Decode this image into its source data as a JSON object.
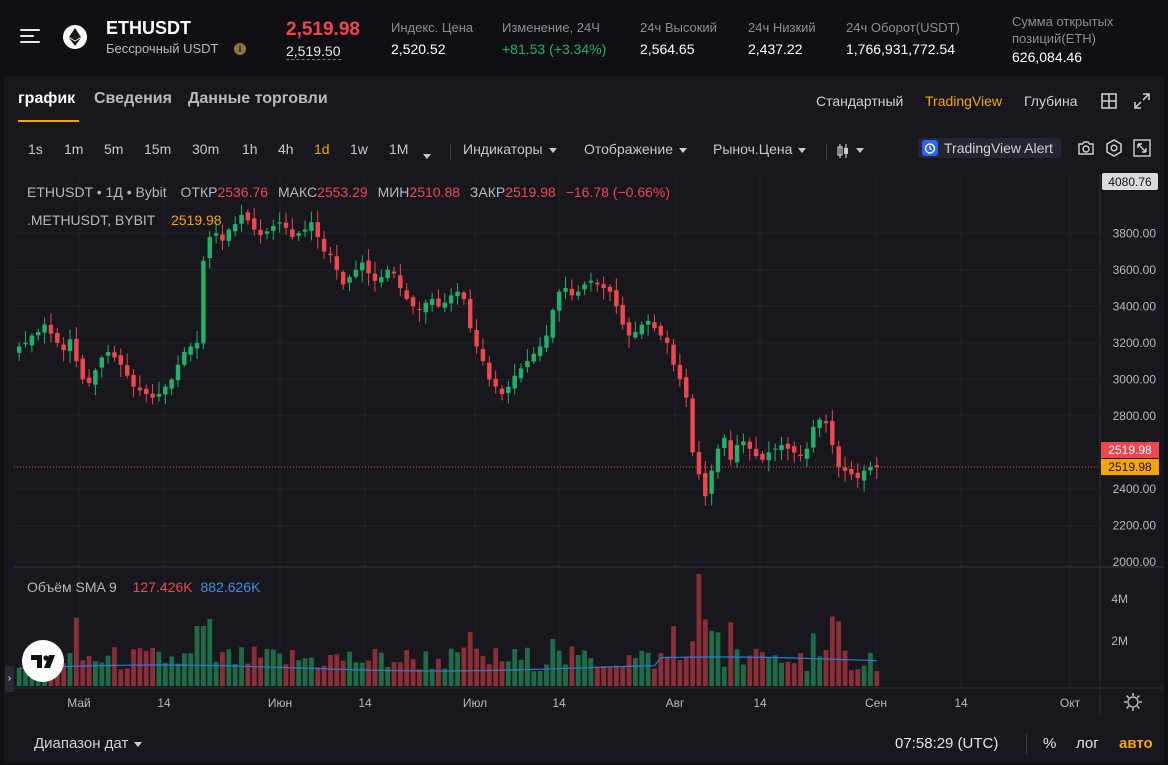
{
  "header": {
    "symbol": "ETHUSDT",
    "contract": "Бессрочный USDT",
    "last_price": "2,519.98",
    "mark_price": "2,519.50",
    "stats": [
      {
        "label": "Индекс. Цена",
        "value": "2,520.52",
        "color": "#ffffff"
      },
      {
        "label": "Изменение, 24Ч",
        "value": "+81.53 (+3.34%)",
        "color": "#20b26c"
      },
      {
        "label": "24ч Высокий",
        "value": "2,564.65",
        "color": "#ffffff"
      },
      {
        "label": "24ч Низкий",
        "value": "2,437.22",
        "color": "#ffffff"
      },
      {
        "label": "24ч Оборот(USDT)",
        "value": "1,766,931,772.54",
        "color": "#ffffff"
      }
    ],
    "open_interest": {
      "label_line1": "Сумма открытых",
      "label_line2": "позиций(ETH)",
      "value": "626,084.46"
    }
  },
  "tabs": [
    "график",
    "Сведения",
    "Данные торговли"
  ],
  "active_tab": "график",
  "view_modes": [
    "Стандартный",
    "TradingView",
    "Глубина"
  ],
  "active_view": "TradingView",
  "timeframes": [
    "1s",
    "1m",
    "5m",
    "15m",
    "30m",
    "1h",
    "4h",
    "1d",
    "1w",
    "1M"
  ],
  "active_timeframe": "1d",
  "toolbar": {
    "indicators": "Индикаторы",
    "display": "Отображение",
    "price_type": "Рыноч.Цена",
    "alert": "TradingView Alert"
  },
  "legend": {
    "title": "ETHUSDT • 1Д • Bybit",
    "open_label": "ОТКР",
    "open": "2536.76",
    "high_label": "МАКС",
    "high": "2553.29",
    "low_label": "МИН",
    "low": "2510.88",
    "close_label": "ЗАКР",
    "close": "2519.98",
    "change": "−16.78 (−0.66%)",
    "index_label": ".METHUSDT, BYBIT",
    "index_value": "2519.98"
  },
  "volume_legend": {
    "label": "Объём SMA 9",
    "v1": "127.426K",
    "v2": "882.626K"
  },
  "colors": {
    "up": "#20b26c",
    "down": "#f0464f",
    "accent": "#f7a600",
    "sma": "#2e7bd6"
  },
  "chart_data": {
    "type": "candlestick",
    "y_axis_top_label": "4080.76",
    "y_ticks": [
      "3800.00",
      "3600.00",
      "3400.00",
      "3200.00",
      "3000.00",
      "2800.00",
      "2400.00",
      "2200.00",
      "2000.00"
    ],
    "ylim": [
      2000,
      4080.76
    ],
    "last_price_label": "2519.98",
    "index_price_label": "2519.98",
    "x_labels": [
      "Май",
      "14",
      "Июн",
      "14",
      "Июл",
      "14",
      "Авг",
      "14",
      "Сен",
      "14",
      "Окт"
    ],
    "volume_ticks": [
      "4M",
      "2M"
    ],
    "close_path": [
      3180,
      3200,
      3240,
      3260,
      3300,
      3250,
      3200,
      3160,
      3220,
      3100,
      3000,
      2980,
      3050,
      3120,
      3150,
      3120,
      3080,
      3020,
      2960,
      2940,
      2920,
      2900,
      2920,
      2960,
      3000,
      3080,
      3150,
      3180,
      3200,
      3650,
      3780,
      3800,
      3760,
      3820,
      3850,
      3900,
      3870,
      3820,
      3790,
      3810,
      3840,
      3860,
      3830,
      3780,
      3800,
      3820,
      3860,
      3780,
      3700,
      3680,
      3600,
      3520,
      3560,
      3600,
      3640,
      3580,
      3540,
      3560,
      3600,
      3580,
      3500,
      3440,
      3400,
      3380,
      3420,
      3440,
      3400,
      3420,
      3460,
      3480,
      3440,
      3280,
      3180,
      3100,
      3000,
      2960,
      2920,
      2960,
      3020,
      3060,
      3100,
      3140,
      3180,
      3240,
      3380,
      3480,
      3500,
      3460,
      3480,
      3520,
      3540,
      3520,
      3500,
      3480,
      3400,
      3300,
      3240,
      3260,
      3300,
      3320,
      3280,
      3240,
      3200,
      3080,
      3000,
      2900,
      2600,
      2480,
      2360,
      2500,
      2620,
      2680,
      2560,
      2640,
      2660,
      2620,
      2580,
      2560,
      2600,
      2620,
      2640,
      2620,
      2600,
      2580,
      2620,
      2740,
      2780,
      2760,
      2640,
      2520,
      2500,
      2480,
      2460,
      2500,
      2520,
      2519.98
    ]
  }
}
